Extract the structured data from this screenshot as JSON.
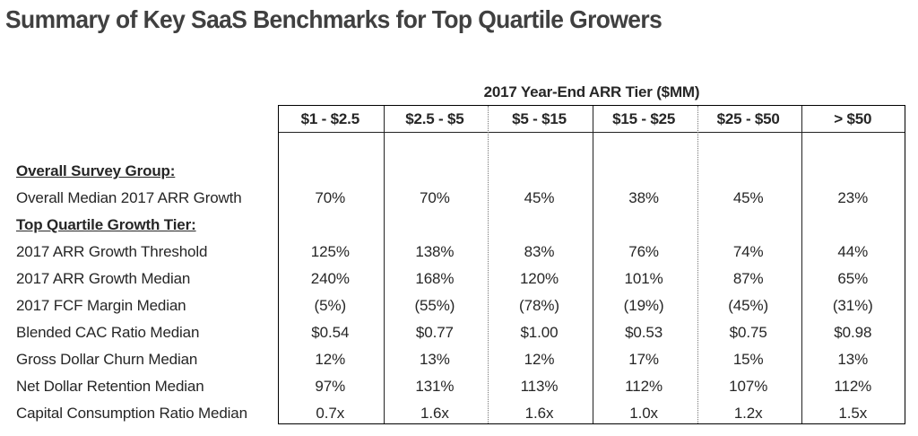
{
  "title": "Summary of Key SaaS Benchmarks for Top Quartile Growers",
  "chart_data": {
    "type": "table",
    "column_group_header": "2017 Year-End ARR Tier ($MM)",
    "columns": [
      "$1 - $2.5",
      "$2.5 - $5",
      "$5 - $15",
      "$15 - $25",
      "$25 - $50",
      "> $50"
    ],
    "rows": [
      {
        "label": "Overall Survey Group:",
        "section": true,
        "values": []
      },
      {
        "label": "Overall Median 2017 ARR Growth",
        "values": [
          "70%",
          "70%",
          "45%",
          "38%",
          "45%",
          "23%"
        ]
      },
      {
        "label": "Top Quartile Growth Tier:",
        "section": true,
        "values": []
      },
      {
        "label": "2017 ARR Growth Threshold",
        "values": [
          "125%",
          "138%",
          "83%",
          "76%",
          "74%",
          "44%"
        ]
      },
      {
        "label": "2017 ARR Growth Median",
        "values": [
          "240%",
          "168%",
          "120%",
          "101%",
          "87%",
          "65%"
        ]
      },
      {
        "label": "2017 FCF Margin Median",
        "values": [
          "(5%)",
          "(55%)",
          "(78%)",
          "(19%)",
          "(45%)",
          "(31%)"
        ]
      },
      {
        "label": "Blended CAC Ratio Median",
        "values": [
          "$0.54",
          "$0.77",
          "$1.00",
          "$0.53",
          "$0.75",
          "$0.98"
        ]
      },
      {
        "label": "Gross Dollar Churn Median",
        "values": [
          "12%",
          "13%",
          "12%",
          "17%",
          "15%",
          "13%"
        ]
      },
      {
        "label": "Net Dollar Retention Median",
        "values": [
          "97%",
          "131%",
          "113%",
          "112%",
          "107%",
          "112%"
        ]
      },
      {
        "label": "Capital Consumption Ratio Median",
        "values": [
          "0.7x",
          "1.6x",
          "1.6x",
          "1.0x",
          "1.2x",
          "1.5x"
        ]
      }
    ]
  }
}
